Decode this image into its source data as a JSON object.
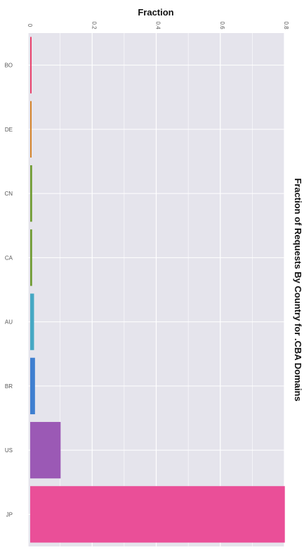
{
  "chart_data": {
    "type": "bar",
    "orientation": "horizontal",
    "title": "Fraction of Requests By Country for .CBA Domains",
    "xlabel": "Fraction",
    "ylabel": "",
    "xlim": [
      0,
      0.8
    ],
    "x_ticks": [
      "0",
      "0.2",
      "0.4",
      "0.6",
      "0.8"
    ],
    "categories": [
      "BO",
      "DE",
      "CN",
      "CA",
      "AU",
      "BR",
      "US",
      "JP"
    ],
    "values": [
      0.003,
      0.003,
      0.006,
      0.006,
      0.012,
      0.015,
      0.095,
      0.795
    ],
    "colors": [
      "#e8416c",
      "#d4832a",
      "#6f9b31",
      "#6e9a30",
      "#46a8c4",
      "#3f7fd0",
      "#9b59b5",
      "#ea4f98"
    ],
    "grid": true,
    "legend": "none",
    "background": "#e5e4ec"
  }
}
